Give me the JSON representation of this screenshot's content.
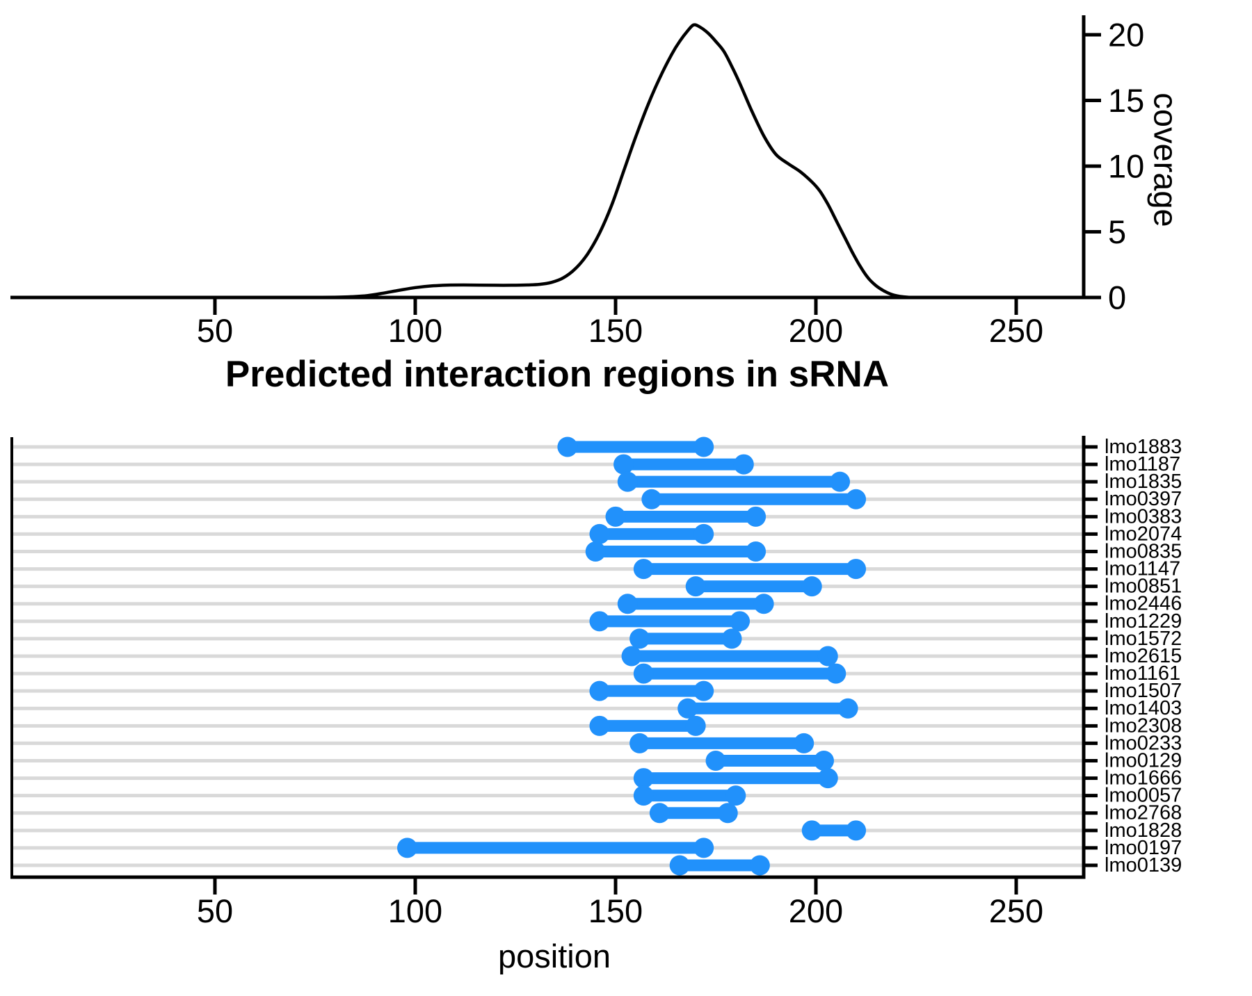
{
  "figure": {
    "title": "Predicted interaction regions in sRNA",
    "coverage_axis_label": "coverage",
    "position_axis_label": "position"
  },
  "colors": {
    "segment": "#2191FB",
    "gridline": "#D9D9D9",
    "axis": "#000000",
    "curve": "#000000",
    "background": "#FFFFFF"
  },
  "chart_data": [
    {
      "type": "area",
      "name": "coverage-density",
      "ylabel": "coverage",
      "xlabel": "",
      "x_ticks": [
        50,
        100,
        150,
        200,
        250
      ],
      "y_ticks": [
        0,
        5,
        10,
        15,
        20
      ],
      "xlim": [
        0,
        268
      ],
      "ylim": [
        0,
        21.5
      ],
      "grid": false,
      "series": [
        {
          "name": "coverage",
          "points": [
            [
              0,
              0
            ],
            [
              50,
              0
            ],
            [
              70,
              0
            ],
            [
              80,
              0.02
            ],
            [
              84,
              0.06
            ],
            [
              88,
              0.14
            ],
            [
              92,
              0.33
            ],
            [
              96,
              0.55
            ],
            [
              100,
              0.75
            ],
            [
              104,
              0.88
            ],
            [
              108,
              0.94
            ],
            [
              112,
              0.95
            ],
            [
              116,
              0.94
            ],
            [
              120,
              0.93
            ],
            [
              124,
              0.93
            ],
            [
              128,
              0.95
            ],
            [
              131,
              1.0
            ],
            [
              134,
              1.15
            ],
            [
              137,
              1.5
            ],
            [
              140,
              2.2
            ],
            [
              143,
              3.3
            ],
            [
              146,
              4.9
            ],
            [
              149,
              7.0
            ],
            [
              152,
              9.6
            ],
            [
              155,
              12.2
            ],
            [
              158,
              14.6
            ],
            [
              161,
              16.7
            ],
            [
              164,
              18.5
            ],
            [
              166,
              19.5
            ],
            [
              168,
              20.3
            ],
            [
              169.5,
              20.75
            ],
            [
              171,
              20.6
            ],
            [
              173,
              20.15
            ],
            [
              175,
              19.5
            ],
            [
              177,
              18.75
            ],
            [
              179,
              17.6
            ],
            [
              181,
              16.3
            ],
            [
              184,
              14.2
            ],
            [
              187,
              12.3
            ],
            [
              190,
              10.9
            ],
            [
              193,
              10.2
            ],
            [
              196,
              9.6
            ],
            [
              199,
              8.8
            ],
            [
              201,
              8.1
            ],
            [
              203,
              7.1
            ],
            [
              205,
              5.9
            ],
            [
              207,
              4.7
            ],
            [
              209,
              3.5
            ],
            [
              211,
              2.4
            ],
            [
              213,
              1.5
            ],
            [
              215,
              0.9
            ],
            [
              217,
              0.5
            ],
            [
              219,
              0.22
            ],
            [
              221,
              0.08
            ],
            [
              223,
              0.02
            ],
            [
              226,
              0
            ],
            [
              240,
              0
            ],
            [
              268,
              0
            ]
          ]
        }
      ]
    },
    {
      "type": "dumbbell",
      "name": "predicted-interaction-regions",
      "title": "Predicted interaction regions in sRNA",
      "xlabel": "position",
      "x_ticks": [
        50,
        100,
        150,
        200,
        250
      ],
      "xlim": [
        0,
        268
      ],
      "grid": true,
      "rows": [
        {
          "gene": "lmo1883",
          "start": 138,
          "end": 172
        },
        {
          "gene": "lmo1187",
          "start": 152,
          "end": 182
        },
        {
          "gene": "lmo1835",
          "start": 153,
          "end": 206
        },
        {
          "gene": "lmo0397",
          "start": 159,
          "end": 210
        },
        {
          "gene": "lmo0383",
          "start": 150,
          "end": 185
        },
        {
          "gene": "lmo2074",
          "start": 146,
          "end": 172
        },
        {
          "gene": "lmo0835",
          "start": 145,
          "end": 185
        },
        {
          "gene": "lmo1147",
          "start": 157,
          "end": 210
        },
        {
          "gene": "lmo0851",
          "start": 170,
          "end": 199
        },
        {
          "gene": "lmo2446",
          "start": 153,
          "end": 187
        },
        {
          "gene": "lmo1229",
          "start": 146,
          "end": 181
        },
        {
          "gene": "lmo1572",
          "start": 156,
          "end": 179
        },
        {
          "gene": "lmo2615",
          "start": 154,
          "end": 203
        },
        {
          "gene": "lmo1161",
          "start": 157,
          "end": 205
        },
        {
          "gene": "lmo1507",
          "start": 146,
          "end": 172
        },
        {
          "gene": "lmo1403",
          "start": 168,
          "end": 208
        },
        {
          "gene": "lmo2308",
          "start": 146,
          "end": 170
        },
        {
          "gene": "lmo0233",
          "start": 156,
          "end": 197
        },
        {
          "gene": "lmo0129",
          "start": 175,
          "end": 202
        },
        {
          "gene": "lmo1666",
          "start": 157,
          "end": 203
        },
        {
          "gene": "lmo0057",
          "start": 157,
          "end": 180
        },
        {
          "gene": "lmo2768",
          "start": 161,
          "end": 178
        },
        {
          "gene": "lmo1828",
          "start": 199,
          "end": 210
        },
        {
          "gene": "lmo0197",
          "start": 98,
          "end": 172
        },
        {
          "gene": "lmo0139",
          "start": 166,
          "end": 186
        }
      ]
    }
  ]
}
